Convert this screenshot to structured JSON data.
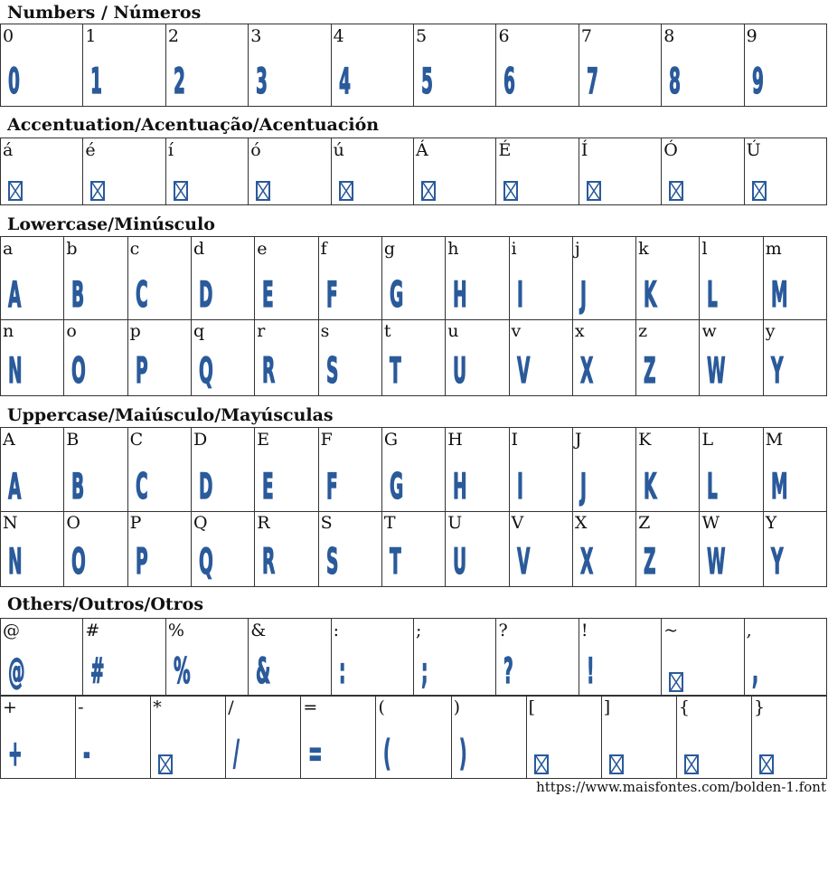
{
  "glyph_color": "#2a5a9a",
  "sections": [
    {
      "title": "Numbers / Números",
      "rows": [
        [
          {
            "label": "0",
            "glyph": "0"
          },
          {
            "label": "1",
            "glyph": "1"
          },
          {
            "label": "2",
            "glyph": "2"
          },
          {
            "label": "3",
            "glyph": "3"
          },
          {
            "label": "4",
            "glyph": "4"
          },
          {
            "label": "5",
            "glyph": "5"
          },
          {
            "label": "6",
            "glyph": "6"
          },
          {
            "label": "7",
            "glyph": "7"
          },
          {
            "label": "8",
            "glyph": "8"
          },
          {
            "label": "9",
            "glyph": "9"
          }
        ]
      ]
    },
    {
      "title": "Accentuation/Acentuação/Acentuación",
      "rows": [
        [
          {
            "label": "á",
            "glyph": null
          },
          {
            "label": "é",
            "glyph": null
          },
          {
            "label": "í",
            "glyph": null
          },
          {
            "label": "ó",
            "glyph": null
          },
          {
            "label": "ú",
            "glyph": null
          },
          {
            "label": "Á",
            "glyph": null
          },
          {
            "label": "É",
            "glyph": null
          },
          {
            "label": "Í",
            "glyph": null
          },
          {
            "label": "Ó",
            "glyph": null
          },
          {
            "label": "Ú",
            "glyph": null
          }
        ]
      ]
    },
    {
      "title": "Lowercase/Minúsculo",
      "rows": [
        [
          {
            "label": "a",
            "glyph": "A"
          },
          {
            "label": "b",
            "glyph": "B"
          },
          {
            "label": "c",
            "glyph": "C"
          },
          {
            "label": "d",
            "glyph": "D"
          },
          {
            "label": "e",
            "glyph": "E"
          },
          {
            "label": "f",
            "glyph": "F"
          },
          {
            "label": "g",
            "glyph": "G"
          },
          {
            "label": "h",
            "glyph": "H"
          },
          {
            "label": "i",
            "glyph": "I"
          },
          {
            "label": "j",
            "glyph": "J"
          },
          {
            "label": "k",
            "glyph": "K"
          },
          {
            "label": "l",
            "glyph": "L"
          },
          {
            "label": "m",
            "glyph": "M"
          }
        ],
        [
          {
            "label": "n",
            "glyph": "N"
          },
          {
            "label": "o",
            "glyph": "O"
          },
          {
            "label": "p",
            "glyph": "P"
          },
          {
            "label": "q",
            "glyph": "Q"
          },
          {
            "label": "r",
            "glyph": "R"
          },
          {
            "label": "s",
            "glyph": "S"
          },
          {
            "label": "t",
            "glyph": "T"
          },
          {
            "label": "u",
            "glyph": "U"
          },
          {
            "label": "v",
            "glyph": "V"
          },
          {
            "label": "x",
            "glyph": "X"
          },
          {
            "label": "z",
            "glyph": "Z"
          },
          {
            "label": "w",
            "glyph": "W"
          },
          {
            "label": "y",
            "glyph": "Y"
          }
        ]
      ]
    },
    {
      "title": "Uppercase/Maiúsculo/Mayúsculas",
      "rows": [
        [
          {
            "label": "A",
            "glyph": "A"
          },
          {
            "label": "B",
            "glyph": "B"
          },
          {
            "label": "C",
            "glyph": "C"
          },
          {
            "label": "D",
            "glyph": "D"
          },
          {
            "label": "E",
            "glyph": "E"
          },
          {
            "label": "F",
            "glyph": "F"
          },
          {
            "label": "G",
            "glyph": "G"
          },
          {
            "label": "H",
            "glyph": "H"
          },
          {
            "label": "I",
            "glyph": "I"
          },
          {
            "label": "J",
            "glyph": "J"
          },
          {
            "label": "K",
            "glyph": "K"
          },
          {
            "label": "L",
            "glyph": "L"
          },
          {
            "label": "M",
            "glyph": "M"
          }
        ],
        [
          {
            "label": "N",
            "glyph": "N"
          },
          {
            "label": "O",
            "glyph": "O"
          },
          {
            "label": "P",
            "glyph": "P"
          },
          {
            "label": "Q",
            "glyph": "Q"
          },
          {
            "label": "R",
            "glyph": "R"
          },
          {
            "label": "S",
            "glyph": "S"
          },
          {
            "label": "T",
            "glyph": "T"
          },
          {
            "label": "U",
            "glyph": "U"
          },
          {
            "label": "V",
            "glyph": "V"
          },
          {
            "label": "X",
            "glyph": "X"
          },
          {
            "label": "Z",
            "glyph": "Z"
          },
          {
            "label": "W",
            "glyph": "W"
          },
          {
            "label": "Y",
            "glyph": "Y"
          }
        ]
      ]
    },
    {
      "title": "Others/Outros/Otros",
      "rows": [
        [
          {
            "label": "@",
            "glyph": "@"
          },
          {
            "label": "#",
            "glyph": "#"
          },
          {
            "label": "%",
            "glyph": "%"
          },
          {
            "label": "&",
            "glyph": "&"
          },
          {
            "label": ":",
            "glyph": ":"
          },
          {
            "label": ";",
            "glyph": ";"
          },
          {
            "label": "?",
            "glyph": "?"
          },
          {
            "label": "!",
            "glyph": "!"
          },
          {
            "label": "~",
            "glyph": null
          },
          {
            "label": ",",
            "glyph": ","
          }
        ],
        [
          {
            "label": "+",
            "glyph": "+"
          },
          {
            "label": "-",
            "glyph": "-"
          },
          {
            "label": "*",
            "glyph": null
          },
          {
            "label": "/",
            "glyph": "/"
          },
          {
            "label": "=",
            "glyph": "="
          },
          {
            "label": "(",
            "glyph": "("
          },
          {
            "label": ")",
            "glyph": ")"
          },
          {
            "label": "[",
            "glyph": null
          },
          {
            "label": "]",
            "glyph": null
          },
          {
            "label": "{",
            "glyph": null
          },
          {
            "label": "}",
            "glyph": null
          }
        ]
      ]
    }
  ],
  "footer_url": "https://www.maisfontes.com/bolden-1.font"
}
